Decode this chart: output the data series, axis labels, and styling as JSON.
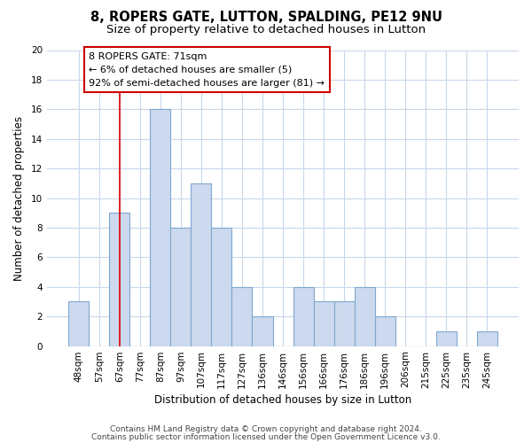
{
  "title": "8, ROPERS GATE, LUTTON, SPALDING, PE12 9NU",
  "subtitle": "Size of property relative to detached houses in Lutton",
  "xlabel": "Distribution of detached houses by size in Lutton",
  "ylabel": "Number of detached properties",
  "categories": [
    "48sqm",
    "57sqm",
    "67sqm",
    "77sqm",
    "87sqm",
    "97sqm",
    "107sqm",
    "117sqm",
    "127sqm",
    "136sqm",
    "146sqm",
    "156sqm",
    "166sqm",
    "176sqm",
    "186sqm",
    "196sqm",
    "206sqm",
    "215sqm",
    "225sqm",
    "235sqm",
    "245sqm"
  ],
  "values": [
    3,
    0,
    9,
    0,
    16,
    8,
    11,
    8,
    4,
    2,
    0,
    4,
    3,
    3,
    4,
    2,
    0,
    0,
    1,
    0,
    1
  ],
  "bar_fill_color": "#ccd9ee",
  "bar_edge_color": "#7fa8d0",
  "vline_x_index": 2,
  "vline_color": "#dd0000",
  "annotation_text_line1": "8 ROPERS GATE: 71sqm",
  "annotation_text_line2": "← 6% of detached houses are smaller (5)",
  "annotation_text_line3": "92% of semi-detached houses are larger (81) →",
  "ylim": [
    0,
    20
  ],
  "yticks": [
    0,
    2,
    4,
    6,
    8,
    10,
    12,
    14,
    16,
    18,
    20
  ],
  "footer1": "Contains HM Land Registry data © Crown copyright and database right 2024.",
  "footer2": "Contains public sector information licensed under the Open Government Licence v3.0.",
  "bg_color": "#ffffff",
  "plot_bg_color": "#ffffff",
  "grid_color": "#c8d8eb",
  "title_fontsize": 10.5,
  "subtitle_fontsize": 9.5,
  "axis_label_fontsize": 8.5,
  "tick_fontsize": 7.5,
  "annotation_fontsize": 8,
  "footer_fontsize": 6.5
}
